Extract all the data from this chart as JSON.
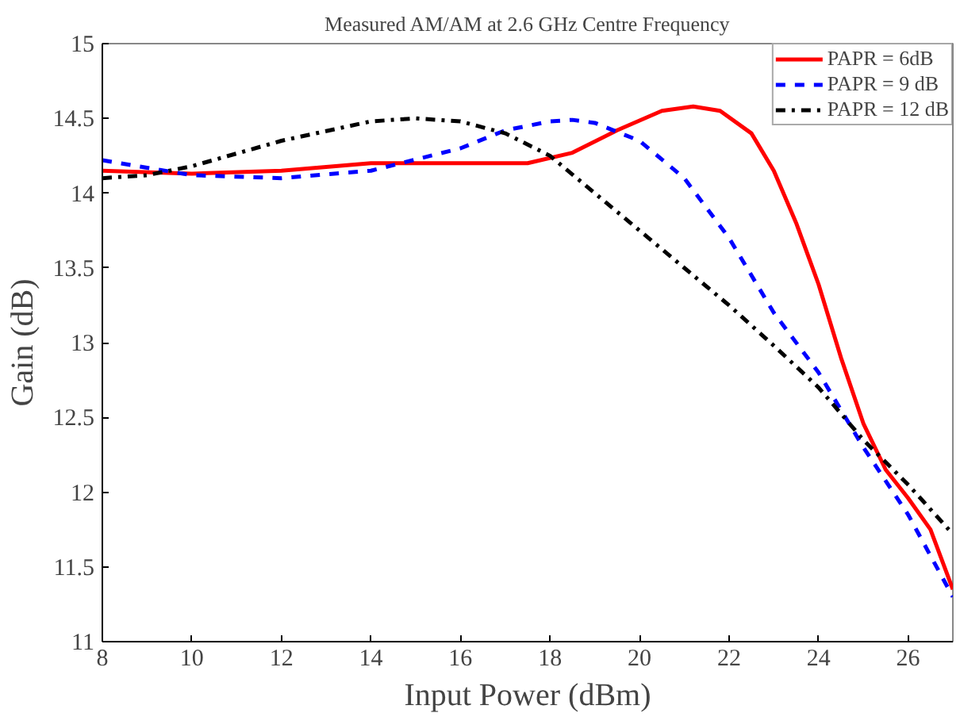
{
  "chart_data": {
    "type": "line",
    "title": "Measured AM/AM at 2.6 GHz Centre Frequency",
    "xlabel": "Input Power (dBm)",
    "ylabel": "Gain (dB)",
    "xlim": [
      8,
      27
    ],
    "ylim": [
      11,
      15
    ],
    "xticks": [
      8,
      10,
      12,
      14,
      16,
      18,
      20,
      22,
      24,
      26
    ],
    "yticks": [
      11,
      11.5,
      12,
      12.5,
      13,
      13.5,
      14,
      14.5,
      15
    ],
    "grid": false,
    "legend": "top right",
    "series": [
      {
        "name": "PAPR = 6dB",
        "color": "#ff0000",
        "line_style": "solid",
        "x": [
          8,
          10,
          12,
          14,
          16,
          17.5,
          18.5,
          19.5,
          20.5,
          21.2,
          21.8,
          22.5,
          23,
          23.5,
          24,
          24.5,
          25,
          25.5,
          26,
          26.5,
          27
        ],
        "values": [
          14.15,
          14.13,
          14.15,
          14.2,
          14.2,
          14.2,
          14.27,
          14.42,
          14.55,
          14.58,
          14.55,
          14.4,
          14.15,
          13.8,
          13.39,
          12.9,
          12.46,
          12.15,
          11.96,
          11.75,
          11.35
        ]
      },
      {
        "name": "PAPR = 9 dB",
        "color": "#0000ff",
        "line_style": "dashed",
        "x": [
          8,
          10,
          12,
          14,
          16,
          17,
          18,
          18.5,
          19,
          20,
          21,
          22,
          23,
          24,
          25,
          26,
          27
        ],
        "values": [
          14.22,
          14.12,
          14.1,
          14.15,
          14.3,
          14.42,
          14.48,
          14.49,
          14.47,
          14.35,
          14.1,
          13.7,
          13.2,
          12.8,
          12.3,
          11.85,
          11.3
        ]
      },
      {
        "name": "PAPR = 12 dB",
        "color": "#000000",
        "line_style": "dashdot",
        "x": [
          8,
          9,
          10,
          12,
          14,
          15,
          16,
          17,
          18,
          19,
          20,
          21,
          22,
          23,
          24,
          25,
          26,
          27
        ],
        "values": [
          14.1,
          14.12,
          14.18,
          14.35,
          14.48,
          14.5,
          14.48,
          14.4,
          14.25,
          14.0,
          13.75,
          13.5,
          13.25,
          12.98,
          12.7,
          12.35,
          12.05,
          11.72
        ]
      }
    ]
  }
}
